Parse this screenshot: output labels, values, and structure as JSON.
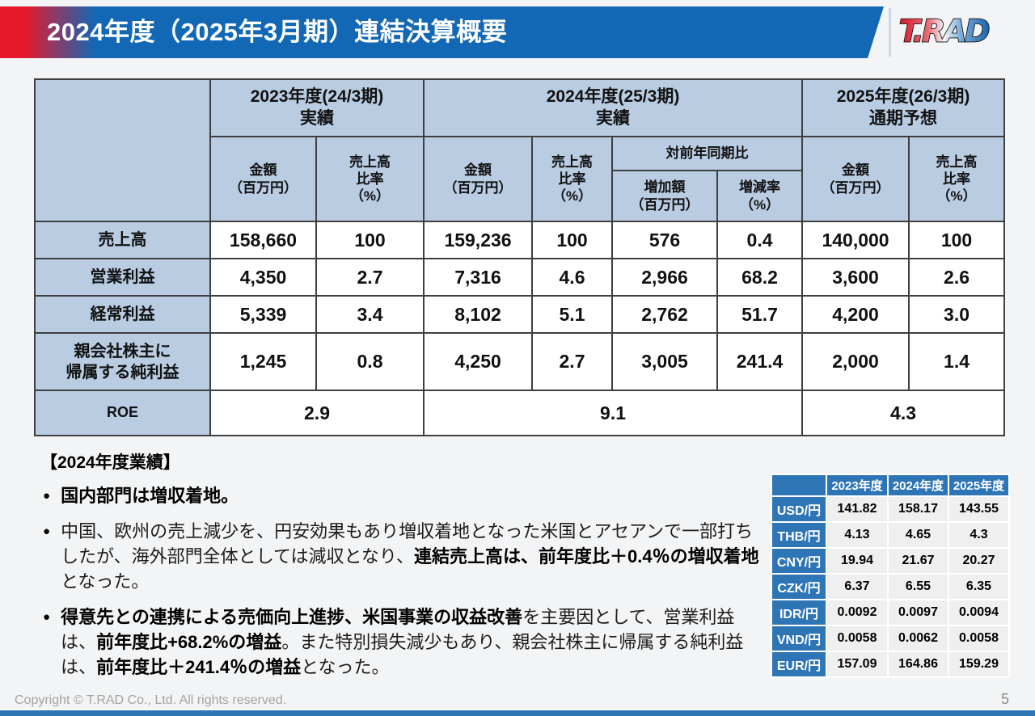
{
  "header": {
    "title": "2024年度（2025年3月期）連結決算概要",
    "logo_text": "T.RAD"
  },
  "colors": {
    "header_blue": "#1268b4",
    "header_red": "#e6192b",
    "table_header_bg": "#b9cce2",
    "fx_blue": "#2e75b6",
    "bottom_bar_blue": "#2e75b6"
  },
  "results_table": {
    "headers": {
      "group_2023": "2023年度(24/3期)\n実績",
      "group_2024": "2024年度(25/3期)\n実績",
      "group_2025": "2025年度(26/3期)\n通期予想",
      "amount": "金額\n（百万円）",
      "sales_ratio": "売上高\n比率\n（%）",
      "yoy": "対前年同期比",
      "increase_amount": "増加額\n（百万円）",
      "change_rate": "増減率\n（%）"
    },
    "rows": [
      {
        "label": "売上高",
        "values": [
          "158,660",
          "100",
          "159,236",
          "100",
          "576",
          "0.4",
          "140,000",
          "100"
        ]
      },
      {
        "label": "営業利益",
        "values": [
          "4,350",
          "2.7",
          "7,316",
          "4.6",
          "2,966",
          "68.2",
          "3,600",
          "2.6"
        ]
      },
      {
        "label": "経常利益",
        "values": [
          "5,339",
          "3.4",
          "8,102",
          "5.1",
          "2,762",
          "51.7",
          "4,200",
          "3.0"
        ]
      },
      {
        "label": "親会社株主に\n帰属する純利益",
        "values": [
          "1,245",
          "0.8",
          "4,250",
          "2.7",
          "3,005",
          "241.4",
          "2,000",
          "1.4"
        ]
      }
    ],
    "roe_row": {
      "label": "ROE",
      "values": [
        "2.9",
        "9.1",
        "4.3"
      ]
    }
  },
  "commentary": {
    "heading": "【2024年度業績】",
    "bullet_marker": "●",
    "bullets": [
      [
        {
          "t": "国内部門は増収着地。",
          "b": true
        }
      ],
      [
        {
          "t": "中国、欧州の売上減少を、円安効果もあり増収着地となった米国とアセアンで一部打ちしたが、海外部門全体としては減収となり、",
          "b": false
        },
        {
          "t": "連結売上高は、前年度比＋0.4％の増収着地",
          "b": true
        },
        {
          "t": "となった。",
          "b": false
        }
      ],
      [
        {
          "t": "得意先との連携による売価向上進捗、米国事業の収益改善",
          "b": true
        },
        {
          "t": "を主要因として、営業利益は、",
          "b": false
        },
        {
          "t": "前年度比+68.2%の増益",
          "b": true
        },
        {
          "t": "。また特別損失減少もあり、親会社株主に帰属する純利益は、",
          "b": false
        },
        {
          "t": "前年度比＋241.4％の増益",
          "b": true
        },
        {
          "t": "となった。",
          "b": false
        }
      ]
    ]
  },
  "fx_table": {
    "col_headers": [
      "2023年度",
      "2024年度",
      "2025年度"
    ],
    "rows": [
      {
        "label": "USD/円",
        "values": [
          "141.82",
          "158.17",
          "143.55"
        ]
      },
      {
        "label": "THB/円",
        "values": [
          "4.13",
          "4.65",
          "4.3"
        ]
      },
      {
        "label": "CNY/円",
        "values": [
          "19.94",
          "21.67",
          "20.27"
        ]
      },
      {
        "label": "CZK/円",
        "values": [
          "6.37",
          "6.55",
          "6.35"
        ]
      },
      {
        "label": "IDR/円",
        "values": [
          "0.0092",
          "0.0097",
          "0.0094"
        ]
      },
      {
        "label": "VND/円",
        "values": [
          "0.0058",
          "0.0062",
          "0.0058"
        ]
      },
      {
        "label": "EUR/円",
        "values": [
          "157.09",
          "164.86",
          "159.29"
        ]
      }
    ]
  },
  "footer": {
    "copyright": "Copyright © T.RAD Co., Ltd. All rights reserved.",
    "page_number": "5"
  }
}
